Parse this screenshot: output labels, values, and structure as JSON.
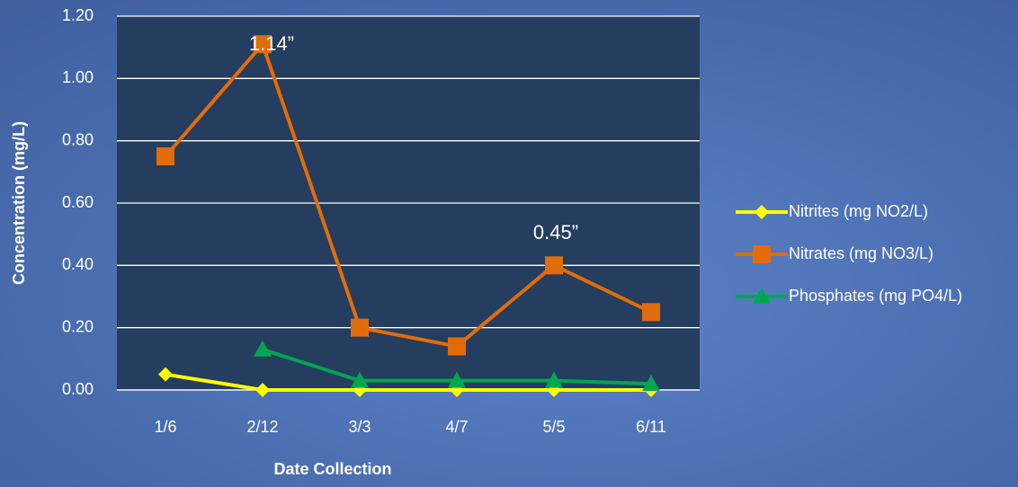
{
  "chart_data": {
    "type": "line",
    "x_label": "Date Collection",
    "y_label": "Concentration (mg/L)",
    "categories": [
      "1/6",
      "2/12",
      "3/3",
      "4/7",
      "5/5",
      "6/11"
    ],
    "series": [
      {
        "name": "Nitrites (mg NO2/L)",
        "color": "#ffff00",
        "marker": "diamond",
        "values": [
          0.05,
          0,
          0,
          0,
          0,
          0
        ]
      },
      {
        "name": "Nitrates (mg NO3/L)",
        "color": "#e36c0a",
        "marker": "square",
        "values": [
          0.75,
          1.11,
          0.2,
          0.14,
          0.4,
          0.25
        ]
      },
      {
        "name": "Phosphates (mg PO4/L)",
        "color": "#00a651",
        "marker": "triangle",
        "values": [
          null,
          0.13,
          0.03,
          0.03,
          0.03,
          0.02
        ]
      }
    ],
    "annotations": [
      "1.14”",
      "0.45”"
    ],
    "ylim": [
      0,
      1.2
    ],
    "yticks": [
      {
        "value": 0,
        "label": "0.00"
      },
      {
        "value": 0.2,
        "label": "0.20"
      },
      {
        "value": 0.4,
        "label": "0.40"
      },
      {
        "value": 0.6,
        "label": "0.60"
      },
      {
        "value": 0.8,
        "label": "0.80"
      },
      {
        "value": 1.0,
        "label": "1.00"
      },
      {
        "value": 1.2,
        "label": "1.20"
      }
    ],
    "grid": true,
    "legend": "right"
  }
}
